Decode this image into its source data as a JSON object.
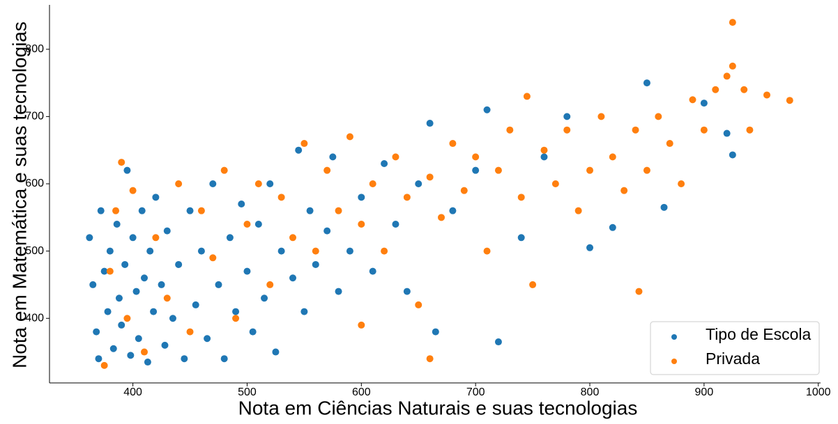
{
  "chart_data": {
    "type": "scatter",
    "x_label": "Nota em Ciências Naturais e suas tecnologias",
    "y_label": "Nota em Matemática e suas tecnologias",
    "xlim": [
      327,
      1002
    ],
    "ylim": [
      304,
      866
    ],
    "xticks": [
      400,
      500,
      600,
      700,
      800,
      900,
      1000
    ],
    "yticks": [
      400,
      500,
      600,
      700,
      800
    ],
    "legend": "lower right",
    "series": [
      {
        "name": "Tipo de Escola",
        "color": "#1f77b4",
        "x": [
          362,
          365,
          368,
          370,
          372,
          375,
          378,
          380,
          383,
          386,
          388,
          390,
          393,
          395,
          398,
          400,
          403,
          405,
          408,
          410,
          413,
          415,
          418,
          420,
          425,
          428,
          430,
          435,
          440,
          445,
          450,
          455,
          460,
          465,
          470,
          475,
          480,
          485,
          490,
          495,
          500,
          505,
          510,
          515,
          520,
          525,
          530,
          540,
          545,
          550,
          555,
          560,
          570,
          575,
          580,
          590,
          600,
          610,
          620,
          630,
          640,
          650,
          660,
          665,
          680,
          700,
          710,
          720,
          740,
          760,
          780,
          800,
          820,
          850,
          865,
          900,
          920,
          925
        ],
        "y": [
          520,
          450,
          380,
          340,
          560,
          470,
          410,
          500,
          355,
          540,
          430,
          390,
          480,
          620,
          345,
          520,
          440,
          370,
          560,
          460,
          335,
          500,
          410,
          580,
          450,
          360,
          530,
          400,
          480,
          340,
          560,
          420,
          500,
          370,
          600,
          450,
          340,
          520,
          410,
          570,
          470,
          380,
          540,
          430,
          600,
          350,
          500,
          460,
          650,
          410,
          560,
          480,
          530,
          640,
          440,
          500,
          580,
          470,
          630,
          540,
          440,
          600,
          690,
          380,
          560,
          620,
          710,
          365,
          520,
          640,
          700,
          505,
          535,
          750,
          565,
          720,
          675,
          643
        ]
      },
      {
        "name": "Privada",
        "color": "#ff7f0e",
        "x": [
          375,
          380,
          385,
          390,
          395,
          400,
          410,
          420,
          430,
          440,
          450,
          460,
          470,
          480,
          490,
          500,
          510,
          520,
          530,
          540,
          550,
          560,
          570,
          580,
          590,
          600,
          610,
          620,
          630,
          640,
          650,
          660,
          670,
          680,
          690,
          700,
          710,
          720,
          730,
          740,
          745,
          750,
          760,
          770,
          780,
          790,
          800,
          810,
          820,
          830,
          840,
          843,
          850,
          860,
          870,
          880,
          890,
          900,
          910,
          920,
          925,
          925,
          935,
          940,
          955,
          975,
          660,
          600
        ],
        "y": [
          330,
          470,
          560,
          632,
          400,
          590,
          350,
          520,
          430,
          600,
          380,
          560,
          490,
          620,
          400,
          540,
          600,
          450,
          580,
          520,
          660,
          500,
          620,
          560,
          670,
          540,
          600,
          500,
          640,
          580,
          420,
          610,
          550,
          660,
          590,
          640,
          500,
          620,
          680,
          580,
          730,
          450,
          650,
          600,
          680,
          560,
          620,
          700,
          640,
          590,
          680,
          440,
          620,
          700,
          660,
          600,
          725,
          680,
          740,
          760,
          840,
          775,
          740,
          680,
          732,
          724,
          340,
          390
        ]
      }
    ]
  }
}
